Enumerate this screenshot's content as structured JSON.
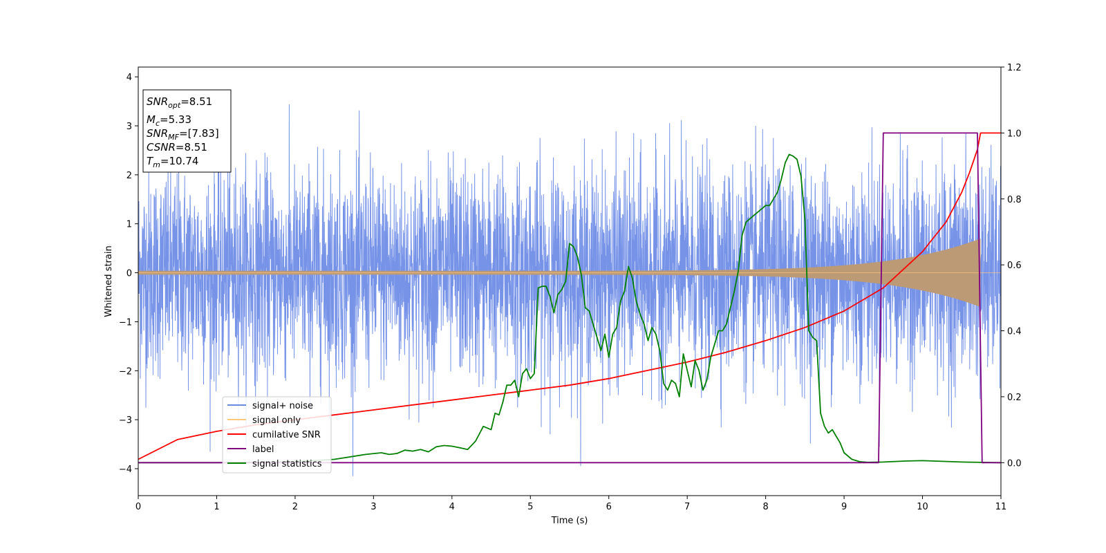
{
  "chart_data": {
    "type": "line",
    "xlabel": "Time (s)",
    "ylabel": "Whitened strain",
    "xlim": [
      0,
      11
    ],
    "ylim_left": [
      -4.55,
      4.2
    ],
    "ylim_right": [
      -0.1,
      1.2
    ],
    "x_ticks": [
      0,
      1,
      2,
      3,
      4,
      5,
      6,
      7,
      8,
      9,
      10,
      11
    ],
    "y_ticks_left": [
      -4,
      -3,
      -2,
      -1,
      0,
      1,
      2,
      3,
      4
    ],
    "y_ticks_right": [
      0.0,
      0.2,
      0.4,
      0.6,
      0.8,
      1.0,
      1.2
    ],
    "y_ticks_left_labels": [
      "−4",
      "−3",
      "−2",
      "−1",
      "0",
      "1",
      "2",
      "3",
      "4"
    ],
    "y_ticks_right_labels": [
      "0.0",
      "0.2",
      "0.4",
      "0.6",
      "0.8",
      "1.0",
      "1.2"
    ],
    "grid": false,
    "legend_position": "lower-left",
    "info_box": {
      "snr_opt": {
        "sym": "SNR",
        "sub": "opt",
        "value": "=8.51"
      },
      "mc": {
        "sym": "M",
        "sub": "c",
        "value": "=5.33"
      },
      "snr_mf": {
        "sym": "SNR",
        "sub": "MF",
        "value": "=[7.83]"
      },
      "csnr": {
        "sym": "CSNR",
        "sub": "",
        "value": "=8.51"
      },
      "tm": {
        "sym": "T",
        "sub": "m",
        "value": "=10.74"
      }
    },
    "series": [
      {
        "name": "signal+ noise",
        "axis": "left",
        "color": "#6a8ae6",
        "description_values": {
          "typical_range": [
            -2.5,
            2.5
          ],
          "peaks": [
            3.85,
            -4.15
          ]
        }
      },
      {
        "name": "signal only",
        "axis": "left",
        "color": "#ffc87a",
        "fill_color": "#bc9a76",
        "chirp": {
          "start_amp": 0.04,
          "end_amp": 0.7,
          "end_time": 10.74
        }
      },
      {
        "name": "cumilative SNR",
        "axis": "right",
        "color": "#ff0000",
        "x": [
          0,
          0.5,
          1,
          1.5,
          2,
          2.5,
          3,
          3.5,
          4,
          4.5,
          5,
          5.5,
          6,
          6.5,
          7,
          7.5,
          8,
          8.5,
          9,
          9.5,
          10,
          10.3,
          10.5,
          10.6,
          10.7,
          10.74,
          11
        ],
        "y": [
          0.01,
          0.07,
          0.095,
          0.115,
          0.13,
          0.145,
          0.16,
          0.175,
          0.19,
          0.205,
          0.22,
          0.235,
          0.255,
          0.28,
          0.305,
          0.335,
          0.37,
          0.41,
          0.46,
          0.53,
          0.64,
          0.73,
          0.82,
          0.88,
          0.95,
          1.0,
          1.0
        ]
      },
      {
        "name": "label",
        "axis": "right",
        "color": "#800080",
        "x": [
          0,
          9.44,
          9.5,
          10.7,
          10.76,
          11
        ],
        "y": [
          0,
          0,
          1,
          1,
          0,
          0
        ]
      },
      {
        "name": "signal statistics",
        "axis": "right",
        "color": "#008000",
        "x": [
          0,
          1,
          1.5,
          2.0,
          2.5,
          2.9,
          3.1,
          3.2,
          3.3,
          3.4,
          3.5,
          3.6,
          3.7,
          3.8,
          3.9,
          4.0,
          4.1,
          4.2,
          4.3,
          4.4,
          4.5,
          4.55,
          4.6,
          4.65,
          4.7,
          4.75,
          4.8,
          4.85,
          4.9,
          4.95,
          5.0,
          5.05,
          5.1,
          5.15,
          5.2,
          5.25,
          5.3,
          5.35,
          5.4,
          5.45,
          5.5,
          5.55,
          5.6,
          5.65,
          5.7,
          5.75,
          5.8,
          5.85,
          5.9,
          5.95,
          6.0,
          6.05,
          6.1,
          6.15,
          6.2,
          6.25,
          6.3,
          6.35,
          6.4,
          6.45,
          6.5,
          6.55,
          6.6,
          6.65,
          6.7,
          6.75,
          6.8,
          6.85,
          6.9,
          6.95,
          7.0,
          7.05,
          7.1,
          7.15,
          7.2,
          7.25,
          7.3,
          7.35,
          7.4,
          7.45,
          7.5,
          7.55,
          7.6,
          7.65,
          7.7,
          7.75,
          7.8,
          7.85,
          7.9,
          7.95,
          8.0,
          8.05,
          8.1,
          8.15,
          8.2,
          8.25,
          8.3,
          8.35,
          8.4,
          8.45,
          8.5,
          8.55,
          8.6,
          8.65,
          8.7,
          8.75,
          8.8,
          8.85,
          8.9,
          8.95,
          9.0,
          9.1,
          9.2,
          9.3,
          9.5,
          9.8,
          10.0,
          10.5,
          11.0
        ],
        "y": [
          0.0,
          0.0,
          0.001,
          0.003,
          0.01,
          0.025,
          0.03,
          0.025,
          0.028,
          0.038,
          0.035,
          0.04,
          0.033,
          0.048,
          0.052,
          0.05,
          0.045,
          0.04,
          0.065,
          0.11,
          0.1,
          0.15,
          0.145,
          0.185,
          0.235,
          0.235,
          0.25,
          0.2,
          0.27,
          0.285,
          0.255,
          0.27,
          0.53,
          0.535,
          0.535,
          0.505,
          0.455,
          0.51,
          0.525,
          0.55,
          0.665,
          0.655,
          0.625,
          0.57,
          0.47,
          0.46,
          0.42,
          0.38,
          0.34,
          0.39,
          0.32,
          0.39,
          0.41,
          0.49,
          0.52,
          0.595,
          0.56,
          0.49,
          0.45,
          0.42,
          0.37,
          0.41,
          0.39,
          0.34,
          0.24,
          0.22,
          0.25,
          0.24,
          0.2,
          0.33,
          0.28,
          0.23,
          0.31,
          0.28,
          0.22,
          0.25,
          0.32,
          0.36,
          0.4,
          0.4,
          0.42,
          0.47,
          0.52,
          0.58,
          0.69,
          0.73,
          0.74,
          0.75,
          0.76,
          0.77,
          0.78,
          0.78,
          0.8,
          0.82,
          0.86,
          0.91,
          0.935,
          0.93,
          0.92,
          0.87,
          0.74,
          0.4,
          0.38,
          0.37,
          0.15,
          0.11,
          0.09,
          0.1,
          0.08,
          0.06,
          0.03,
          0.01,
          0.003,
          0.001,
          0.002,
          0.005,
          0.006,
          0.002,
          0.0
        ]
      }
    ]
  }
}
